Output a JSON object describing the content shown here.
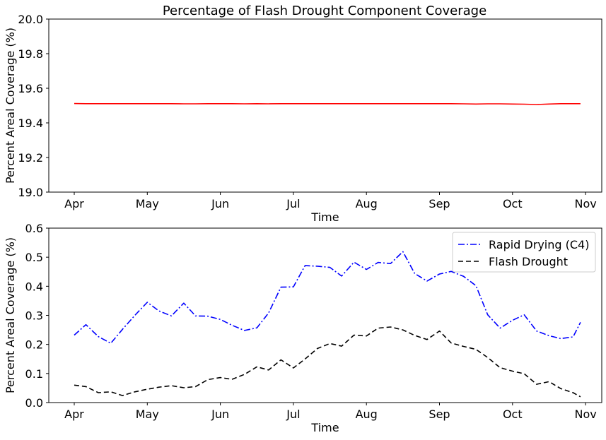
{
  "figure": {
    "title": "Percentage of Flash Drought Component Coverage"
  },
  "chart_data": [
    {
      "type": "line",
      "title": "Percentage of Flash Drought Component Coverage",
      "xlabel": "Time",
      "ylabel": "Percent Areal Coverage (%)",
      "x_ticks": [
        "Apr",
        "May",
        "Jun",
        "Jul",
        "Aug",
        "Sep",
        "Oct",
        "Nov"
      ],
      "ylim": [
        19.0,
        20.0
      ],
      "y_ticks": [
        "19.0",
        "19.2",
        "19.4",
        "19.6",
        "19.8",
        "20.0"
      ],
      "grid": false,
      "series": [
        {
          "color": "#ff0000",
          "style": "solid",
          "x": [
            0,
            0.16,
            0.33,
            0.5,
            0.66,
            0.83,
            1.0,
            1.16,
            1.33,
            1.5,
            1.66,
            1.83,
            2.0,
            2.16,
            2.33,
            2.5,
            2.66,
            2.83,
            3.0,
            3.16,
            3.33,
            3.5,
            3.66,
            3.83,
            4.0,
            4.16,
            4.33,
            4.5,
            4.66,
            4.83,
            5.0,
            5.16,
            5.33,
            5.5,
            5.66,
            5.83,
            6.0,
            6.16,
            6.33,
            6.5,
            6.66,
            6.83,
            6.93
          ],
          "y": [
            19.512,
            19.511,
            19.511,
            19.511,
            19.511,
            19.511,
            19.511,
            19.511,
            19.511,
            19.51,
            19.51,
            19.511,
            19.511,
            19.511,
            19.51,
            19.511,
            19.51,
            19.511,
            19.511,
            19.511,
            19.511,
            19.511,
            19.511,
            19.511,
            19.511,
            19.511,
            19.511,
            19.511,
            19.511,
            19.511,
            19.511,
            19.511,
            19.51,
            19.509,
            19.51,
            19.51,
            19.509,
            19.508,
            19.506,
            19.509,
            19.511,
            19.511,
            19.511
          ]
        }
      ]
    },
    {
      "type": "line",
      "xlabel": "Time",
      "ylabel": "Percent Areal Coverage (%)",
      "x_ticks": [
        "Apr",
        "May",
        "Jun",
        "Jul",
        "Aug",
        "Sep",
        "Oct",
        "Nov"
      ],
      "ylim": [
        0.0,
        0.6
      ],
      "y_ticks": [
        "0.0",
        "0.1",
        "0.2",
        "0.3",
        "0.4",
        "0.5",
        "0.6"
      ],
      "grid": false,
      "legend": "top-right",
      "series": [
        {
          "name": "Rapid Drying (C4)",
          "color": "#0000ff",
          "style": "dashdot",
          "x": [
            0,
            0.16,
            0.33,
            0.5,
            0.66,
            0.83,
            1.0,
            1.16,
            1.33,
            1.5,
            1.66,
            1.83,
            2.0,
            2.16,
            2.33,
            2.5,
            2.66,
            2.83,
            3.0,
            3.16,
            3.33,
            3.5,
            3.66,
            3.83,
            4.0,
            4.16,
            4.33,
            4.5,
            4.66,
            4.83,
            5.0,
            5.16,
            5.33,
            5.5,
            5.66,
            5.83,
            6.0,
            6.16,
            6.33,
            6.5,
            6.66,
            6.83,
            6.93
          ],
          "y": [
            0.232,
            0.268,
            0.227,
            0.204,
            0.252,
            0.3,
            0.345,
            0.315,
            0.298,
            0.342,
            0.298,
            0.297,
            0.286,
            0.266,
            0.248,
            0.257,
            0.308,
            0.397,
            0.398,
            0.471,
            0.469,
            0.465,
            0.435,
            0.483,
            0.458,
            0.482,
            0.478,
            0.519,
            0.444,
            0.418,
            0.442,
            0.451,
            0.434,
            0.402,
            0.302,
            0.256,
            0.283,
            0.302,
            0.246,
            0.23,
            0.22,
            0.226,
            0.276
          ]
        },
        {
          "name": "Flash Drought",
          "color": "#000000",
          "style": "dashed",
          "x": [
            0,
            0.16,
            0.33,
            0.5,
            0.66,
            0.83,
            1.0,
            1.16,
            1.33,
            1.5,
            1.66,
            1.83,
            2.0,
            2.16,
            2.33,
            2.5,
            2.66,
            2.83,
            3.0,
            3.16,
            3.33,
            3.5,
            3.66,
            3.83,
            4.0,
            4.16,
            4.33,
            4.5,
            4.66,
            4.83,
            5.0,
            5.16,
            5.33,
            5.5,
            5.66,
            5.83,
            6.0,
            6.16,
            6.33,
            6.5,
            6.66,
            6.83,
            6.93
          ],
          "y": [
            0.06,
            0.055,
            0.034,
            0.037,
            0.024,
            0.037,
            0.046,
            0.053,
            0.058,
            0.051,
            0.055,
            0.079,
            0.086,
            0.08,
            0.097,
            0.123,
            0.112,
            0.147,
            0.119,
            0.15,
            0.186,
            0.203,
            0.194,
            0.232,
            0.229,
            0.256,
            0.26,
            0.25,
            0.231,
            0.217,
            0.246,
            0.205,
            0.193,
            0.183,
            0.155,
            0.12,
            0.108,
            0.099,
            0.063,
            0.072,
            0.048,
            0.034,
            0.02
          ]
        }
      ]
    }
  ]
}
